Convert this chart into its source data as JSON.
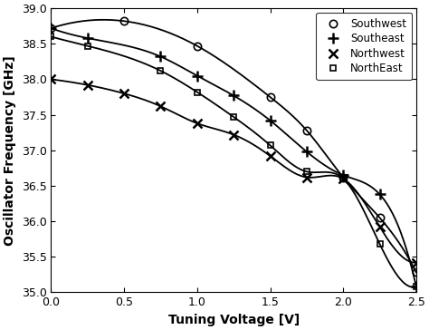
{
  "title": "",
  "xlabel": "Tuning Voltage [V]",
  "ylabel": "Oscillator Frequency [GHz]",
  "xlim": [
    0,
    2.5
  ],
  "ylim": [
    35,
    39
  ],
  "yticks": [
    35,
    35.5,
    36,
    36.5,
    37,
    37.5,
    38,
    38.5,
    39
  ],
  "xticks": [
    0,
    0.5,
    1,
    1.5,
    2,
    2.5
  ],
  "series": [
    {
      "label": "Southwest",
      "marker": "o",
      "color": "#000000",
      "linewidth": 1.3,
      "markersize": 6,
      "markeredgewidth": 1.2,
      "x": [
        0.0,
        0.5,
        1.0,
        1.5,
        1.75,
        2.0,
        2.25,
        2.5
      ],
      "y": [
        38.72,
        38.82,
        38.47,
        37.75,
        37.28,
        36.62,
        36.05,
        35.28
      ]
    },
    {
      "label": "Southeast",
      "marker": "+",
      "color": "#000000",
      "linewidth": 1.3,
      "markersize": 9,
      "markeredgewidth": 1.8,
      "x": [
        0.0,
        0.25,
        0.75,
        1.0,
        1.25,
        1.5,
        1.75,
        2.0,
        2.25,
        2.5
      ],
      "y": [
        38.72,
        38.58,
        38.32,
        38.05,
        37.77,
        37.42,
        36.98,
        36.65,
        36.38,
        35.08
      ]
    },
    {
      "label": "Northwest",
      "marker": "x",
      "color": "#000000",
      "linewidth": 1.3,
      "markersize": 7,
      "markeredgewidth": 1.8,
      "x": [
        0.0,
        0.25,
        0.5,
        0.75,
        1.0,
        1.25,
        1.5,
        1.75,
        2.0,
        2.25,
        2.5
      ],
      "y": [
        38.0,
        37.92,
        37.8,
        37.62,
        37.38,
        37.22,
        36.92,
        36.62,
        36.6,
        35.92,
        35.42
      ]
    },
    {
      "label": "NorthEast",
      "marker": "s",
      "color": "#000000",
      "linewidth": 1.3,
      "markersize": 5,
      "markeredgewidth": 1.2,
      "x": [
        0.0,
        0.25,
        0.75,
        1.0,
        1.25,
        1.5,
        1.75,
        2.0,
        2.25,
        2.5
      ],
      "y": [
        38.6,
        38.47,
        38.12,
        37.82,
        37.47,
        37.07,
        36.7,
        36.6,
        35.68,
        35.08
      ]
    }
  ],
  "background_color": "#ffffff",
  "legend_loc": "upper right",
  "figsize": [
    4.74,
    3.64
  ],
  "dpi": 100
}
